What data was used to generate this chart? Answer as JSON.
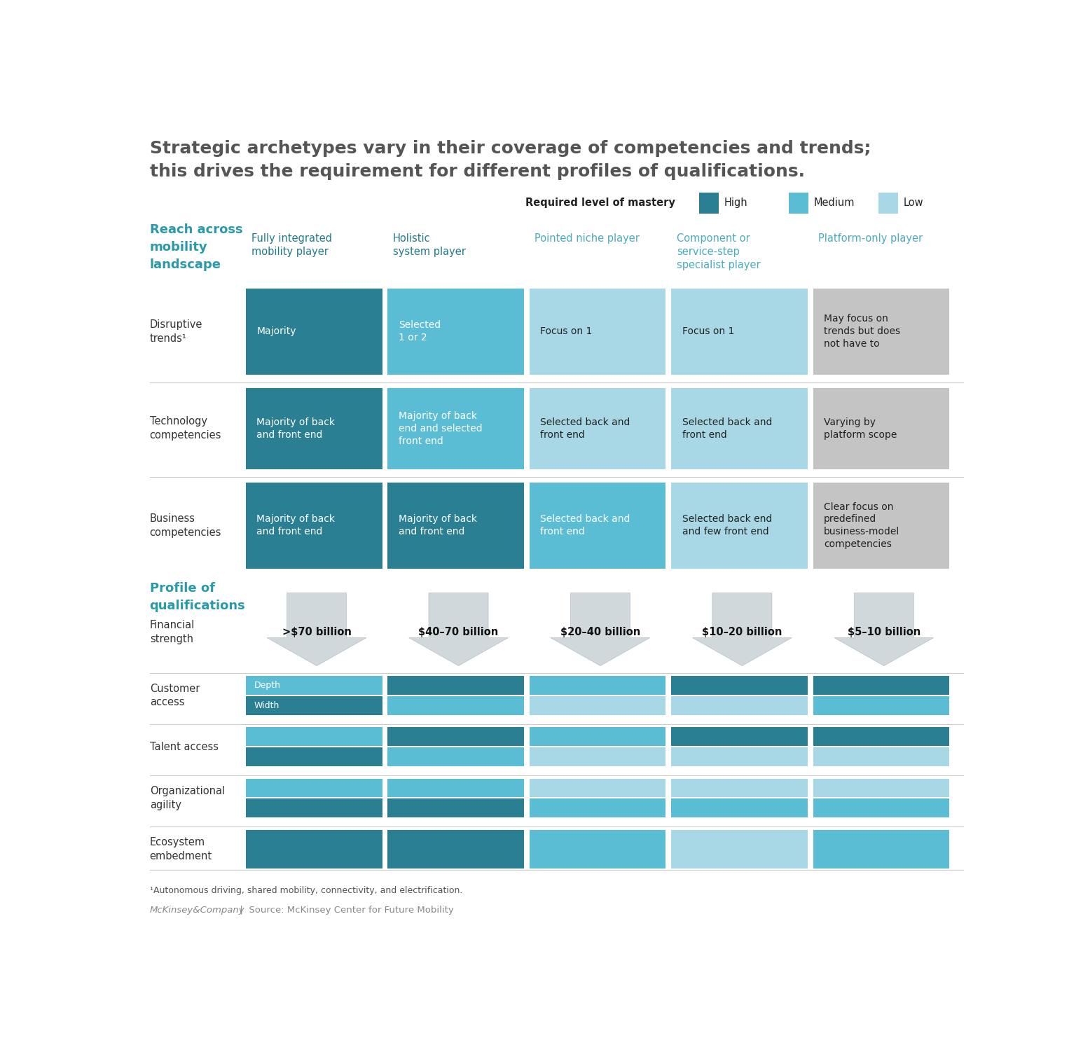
{
  "title_line1": "Strategic archetypes vary in their coverage of competencies and trends;",
  "title_line2": "this drives the requirement for different profiles of qualifications.",
  "legend_label": "Required level of mastery",
  "legend_items": [
    "High",
    "Medium",
    "Low"
  ],
  "colors": {
    "high": "#2a7f93",
    "medium": "#5bbdd4",
    "low": "#a8d8e5",
    "gray": "#c4c4c4",
    "header_dark": "#1f7a8c",
    "header_light": "#4aabbf",
    "bg": "#ffffff",
    "section_teal": "#2a9aaa",
    "arrow_fill": "#d0d8dc",
    "arrow_edge": "#b8c0c8",
    "divider": "#cccccc",
    "text_dark": "#333333",
    "text_gray": "#777777",
    "title_gray": "#555555"
  },
  "col_headers": [
    "Fully integrated\nmobility player",
    "Holistic\nsystem player",
    "Pointed niche player",
    "Component or\nservice-step\nspecialist player",
    "Platform-only player"
  ],
  "row_section1_label": "Reach across\nmobility\nlandscape",
  "rows_section1": [
    {
      "label": "Disruptive\ntrends¹",
      "cells": [
        {
          "text": "Majority",
          "color": "high",
          "text_color": "white"
        },
        {
          "text": "Selected\n1 or 2",
          "color": "medium",
          "text_color": "white"
        },
        {
          "text": "Focus on 1",
          "color": "low",
          "text_color": "black"
        },
        {
          "text": "Focus on 1",
          "color": "low",
          "text_color": "black"
        },
        {
          "text": "May focus on\ntrends but does\nnot have to",
          "color": "gray",
          "text_color": "black"
        }
      ]
    },
    {
      "label": "Technology\ncompetencies",
      "cells": [
        {
          "text": "Majority of back\nand front end",
          "color": "high",
          "text_color": "white"
        },
        {
          "text": "Majority of back\nend and selected\nfront end",
          "color": "medium",
          "text_color": "white"
        },
        {
          "text": "Selected back and\nfront end",
          "color": "low",
          "text_color": "black"
        },
        {
          "text": "Selected back and\nfront end",
          "color": "low",
          "text_color": "black"
        },
        {
          "text": "Varying by\nplatform scope",
          "color": "gray",
          "text_color": "black"
        }
      ]
    },
    {
      "label": "Business\ncompetencies",
      "cells": [
        {
          "text": "Majority of back\nand front end",
          "color": "high",
          "text_color": "white"
        },
        {
          "text": "Majority of back\nand front end",
          "color": "high",
          "text_color": "white"
        },
        {
          "text": "Selected back and\nfront end",
          "color": "medium",
          "text_color": "white"
        },
        {
          "text": "Selected back end\nand few front end",
          "color": "low",
          "text_color": "black"
        },
        {
          "text": "Clear focus on\npredefined\nbusiness-model\ncompetencies",
          "color": "gray",
          "text_color": "black"
        }
      ]
    }
  ],
  "row_section2_label": "Profile of\nqualifications",
  "financial_label": "Financial\nstrength",
  "financial_values": [
    ">$70 billion",
    "$40–70 billion",
    "$20–40 billion",
    "$10–20 billion",
    "$5–10 billion"
  ],
  "rows_section2": [
    {
      "label": "Customer\naccess",
      "sublabels": [
        "Width",
        "Depth"
      ],
      "bars": [
        [
          {
            "color": "high"
          },
          {
            "color": "medium"
          }
        ],
        [
          {
            "color": "medium"
          },
          {
            "color": "high"
          }
        ],
        [
          {
            "color": "low"
          },
          {
            "color": "medium"
          }
        ],
        [
          {
            "color": "low"
          },
          {
            "color": "high"
          }
        ],
        [
          {
            "color": "medium"
          },
          {
            "color": "high"
          }
        ]
      ]
    },
    {
      "label": "Talent access",
      "bars": [
        [
          {
            "color": "high"
          },
          {
            "color": "medium"
          }
        ],
        [
          {
            "color": "medium"
          },
          {
            "color": "high"
          }
        ],
        [
          {
            "color": "low"
          },
          {
            "color": "medium"
          }
        ],
        [
          {
            "color": "low"
          },
          {
            "color": "high"
          }
        ],
        [
          {
            "color": "low"
          },
          {
            "color": "high"
          }
        ]
      ]
    },
    {
      "label": "Organizational\nagility",
      "bars": [
        [
          {
            "color": "high"
          },
          {
            "color": "medium"
          }
        ],
        [
          {
            "color": "high"
          },
          {
            "color": "medium"
          }
        ],
        [
          {
            "color": "medium"
          },
          {
            "color": "low"
          }
        ],
        [
          {
            "color": "medium"
          },
          {
            "color": "low"
          }
        ],
        [
          {
            "color": "medium"
          },
          {
            "color": "low"
          }
        ]
      ]
    },
    {
      "label": "Ecosystem\nembedment",
      "bars": [
        [
          {
            "color": "high"
          }
        ],
        [
          {
            "color": "high"
          }
        ],
        [
          {
            "color": "medium"
          }
        ],
        [
          {
            "color": "low"
          }
        ],
        [
          {
            "color": "medium"
          }
        ]
      ]
    }
  ],
  "footnote": "¹Autonomous driving, shared mobility, connectivity, and electrification.",
  "source_bold": "McKinsey&Company",
  "source_rest": "  |  Source: McKinsey Center for Future Mobility"
}
